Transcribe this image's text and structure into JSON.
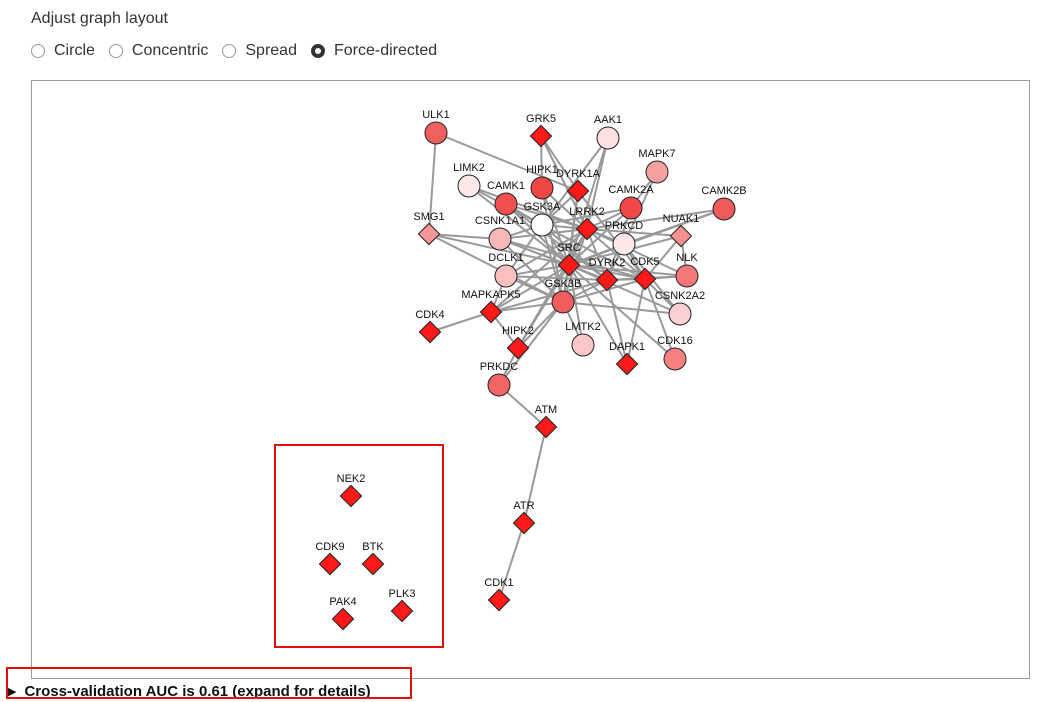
{
  "heading": "Adjust graph layout",
  "layout_options": [
    {
      "label": "Circle",
      "checked": false
    },
    {
      "label": "Concentric",
      "checked": false
    },
    {
      "label": "Spread",
      "checked": false
    },
    {
      "label": "Force-directed",
      "checked": true
    }
  ],
  "colors": {
    "edge": "#999999",
    "highlight": "#e01010",
    "diamond": "#ff0000"
  },
  "graph": {
    "nodes": [
      {
        "id": "ULK1",
        "shape": "circle",
        "fill": "#f25f5f"
      },
      {
        "id": "GRK5",
        "shape": "diamond",
        "fill": "#ff1a1a"
      },
      {
        "id": "AAK1",
        "shape": "circle",
        "fill": "#fde0e0"
      },
      {
        "id": "MAPK7",
        "shape": "circle",
        "fill": "#f7a0a0"
      },
      {
        "id": "LIMK2",
        "shape": "circle",
        "fill": "#fde8e8"
      },
      {
        "id": "HIPK1",
        "shape": "circle",
        "fill": "#f24545"
      },
      {
        "id": "DYRK1A",
        "shape": "diamond",
        "fill": "#ff1a1a"
      },
      {
        "id": "CAMK1",
        "shape": "circle",
        "fill": "#f25050"
      },
      {
        "id": "CAMK2A",
        "shape": "circle",
        "fill": "#f04848"
      },
      {
        "id": "CAMK2B",
        "shape": "circle",
        "fill": "#f05a5a"
      },
      {
        "id": "GSK3A",
        "shape": "circle",
        "fill": "#ffffff"
      },
      {
        "id": "SMG1",
        "shape": "diamond",
        "fill": "#f59595"
      },
      {
        "id": "CSNK1A1",
        "shape": "circle",
        "fill": "#f9b8b8"
      },
      {
        "id": "LRRK2",
        "shape": "diamond",
        "fill": "#ff1a1a"
      },
      {
        "id": "PRKCD",
        "shape": "circle",
        "fill": "#fde8e8"
      },
      {
        "id": "NUAK1",
        "shape": "diamond",
        "fill": "#f59090"
      },
      {
        "id": "SRC",
        "shape": "diamond",
        "fill": "#ff1a1a"
      },
      {
        "id": "DCLK1",
        "shape": "circle",
        "fill": "#fac0c0"
      },
      {
        "id": "DYRK2",
        "shape": "diamond",
        "fill": "#ff1a1a"
      },
      {
        "id": "CDK5",
        "shape": "diamond",
        "fill": "#ff1a1a"
      },
      {
        "id": "NLK",
        "shape": "circle",
        "fill": "#f57878"
      },
      {
        "id": "MAPKAPK5",
        "shape": "diamond",
        "fill": "#ff1a1a"
      },
      {
        "id": "GSK3B",
        "shape": "circle",
        "fill": "#f25c5c"
      },
      {
        "id": "CSNK2A2",
        "shape": "circle",
        "fill": "#fbd0d0"
      },
      {
        "id": "CDK4",
        "shape": "diamond",
        "fill": "#ff1a1a"
      },
      {
        "id": "HIPK2",
        "shape": "diamond",
        "fill": "#ff1a1a"
      },
      {
        "id": "LMTK2",
        "shape": "circle",
        "fill": "#fbc8c8"
      },
      {
        "id": "DAPK1",
        "shape": "diamond",
        "fill": "#ff1a1a"
      },
      {
        "id": "CDK16",
        "shape": "circle",
        "fill": "#f78080"
      },
      {
        "id": "PRKDC",
        "shape": "circle",
        "fill": "#f26565"
      },
      {
        "id": "ATM",
        "shape": "diamond",
        "fill": "#ff1a1a"
      },
      {
        "id": "NEK2",
        "shape": "diamond",
        "fill": "#ff1a1a"
      },
      {
        "id": "CDK9",
        "shape": "diamond",
        "fill": "#ff1a1a"
      },
      {
        "id": "BTK",
        "shape": "diamond",
        "fill": "#ff1a1a"
      },
      {
        "id": "PAK4",
        "shape": "diamond",
        "fill": "#ff1a1a"
      },
      {
        "id": "PLK3",
        "shape": "diamond",
        "fill": "#ff1a1a"
      },
      {
        "id": "ATR",
        "shape": "diamond",
        "fill": "#ff1a1a"
      },
      {
        "id": "CDK1",
        "shape": "diamond",
        "fill": "#ff1a1a"
      }
    ],
    "edges": [
      [
        "ULK1",
        "SMG1"
      ],
      [
        "ULK1",
        "DYRK1A"
      ],
      [
        "GRK5",
        "HIPK1"
      ],
      [
        "GRK5",
        "DYRK1A"
      ],
      [
        "GRK5",
        "LRRK2"
      ],
      [
        "AAK1",
        "GSK3A"
      ],
      [
        "AAK1",
        "LRRK2"
      ],
      [
        "AAK1",
        "SRC"
      ],
      [
        "MAPK7",
        "CAMK2A"
      ],
      [
        "MAPK7",
        "PRKCD"
      ],
      [
        "LIMK2",
        "LRRK2"
      ],
      [
        "LIMK2",
        "SRC"
      ],
      [
        "LIMK2",
        "GSK3A"
      ],
      [
        "HIPK1",
        "LRRK2"
      ],
      [
        "HIPK1",
        "SRC"
      ],
      [
        "HIPK1",
        "GSK3B"
      ],
      [
        "CAMK1",
        "GSK3A"
      ],
      [
        "CAMK1",
        "LRRK2"
      ],
      [
        "CAMK1",
        "SRC"
      ],
      [
        "CAMK1",
        "DYRK2"
      ],
      [
        "DYRK1A",
        "GSK3A"
      ],
      [
        "DYRK1A",
        "SRC"
      ],
      [
        "DYRK1A",
        "GSK3B"
      ],
      [
        "DYRK1A",
        "CDK5"
      ],
      [
        "CAMK2A",
        "LRRK2"
      ],
      [
        "CAMK2A",
        "SRC"
      ],
      [
        "CAMK2A",
        "DYRK2"
      ],
      [
        "CAMK2A",
        "GSK3A"
      ],
      [
        "CAMK2B",
        "LRRK2"
      ],
      [
        "CAMK2B",
        "PRKCD"
      ],
      [
        "CAMK2B",
        "SRC"
      ],
      [
        "GSK3A",
        "SRC"
      ],
      [
        "GSK3A",
        "GSK3B"
      ],
      [
        "GSK3A",
        "DYRK2"
      ],
      [
        "GSK3A",
        "CDK5"
      ],
      [
        "GSK3A",
        "LRRK2"
      ],
      [
        "GSK3A",
        "DCLK1"
      ],
      [
        "GSK3A",
        "CSNK1A1"
      ],
      [
        "SMG1",
        "SRC"
      ],
      [
        "SMG1",
        "CSNK1A1"
      ],
      [
        "SMG1",
        "GSK3B"
      ],
      [
        "CSNK1A1",
        "SRC"
      ],
      [
        "CSNK1A1",
        "LRRK2"
      ],
      [
        "CSNK1A1",
        "DYRK2"
      ],
      [
        "CSNK1A1",
        "CDK5"
      ],
      [
        "CSNK1A1",
        "GSK3B"
      ],
      [
        "LRRK2",
        "SRC"
      ],
      [
        "LRRK2",
        "PRKCD"
      ],
      [
        "LRRK2",
        "NUAK1"
      ],
      [
        "LRRK2",
        "NLK"
      ],
      [
        "LRRK2",
        "CDK5"
      ],
      [
        "LRRK2",
        "DYRK2"
      ],
      [
        "LRRK2",
        "GSK3B"
      ],
      [
        "LRRK2",
        "DCLK1"
      ],
      [
        "LRRK2",
        "MAPKAPK5"
      ],
      [
        "LRRK2",
        "HIPK2"
      ],
      [
        "PRKCD",
        "SRC"
      ],
      [
        "PRKCD",
        "DYRK2"
      ],
      [
        "PRKCD",
        "CDK5"
      ],
      [
        "PRKCD",
        "CSNK2A2"
      ],
      [
        "NUAK1",
        "SRC"
      ],
      [
        "NUAK1",
        "CDK5"
      ],
      [
        "NUAK1",
        "NLK"
      ],
      [
        "SRC",
        "DCLK1"
      ],
      [
        "SRC",
        "DYRK2"
      ],
      [
        "SRC",
        "CDK5"
      ],
      [
        "SRC",
        "NLK"
      ],
      [
        "SRC",
        "GSK3B"
      ],
      [
        "SRC",
        "MAPKAPK5"
      ],
      [
        "SRC",
        "HIPK2"
      ],
      [
        "SRC",
        "LMTK2"
      ],
      [
        "SRC",
        "DAPK1"
      ],
      [
        "SRC",
        "CDK16"
      ],
      [
        "SRC",
        "CSNK2A2"
      ],
      [
        "DCLK1",
        "DYRK2"
      ],
      [
        "DCLK1",
        "GSK3B"
      ],
      [
        "DCLK1",
        "MAPKAPK5"
      ],
      [
        "DYRK2",
        "CDK5"
      ],
      [
        "DYRK2",
        "NLK"
      ],
      [
        "DYRK2",
        "GSK3B"
      ],
      [
        "DYRK2",
        "DAPK1"
      ],
      [
        "DYRK2",
        "MAPKAPK5"
      ],
      [
        "CDK5",
        "NLK"
      ],
      [
        "CDK5",
        "CSNK2A2"
      ],
      [
        "CDK5",
        "CDK16"
      ],
      [
        "CDK5",
        "GSK3B"
      ],
      [
        "CDK5",
        "DAPK1"
      ],
      [
        "MAPKAPK5",
        "CDK4"
      ],
      [
        "MAPKAPK5",
        "GSK3B"
      ],
      [
        "MAPKAPK5",
        "HIPK2"
      ],
      [
        "GSK3B",
        "HIPK2"
      ],
      [
        "GSK3B",
        "LMTK2"
      ],
      [
        "GSK3B",
        "PRKDC"
      ],
      [
        "GSK3B",
        "CSNK2A2"
      ],
      [
        "HIPK2",
        "PRKDC"
      ],
      [
        "PRKDC",
        "ATM"
      ],
      [
        "ATM",
        "ATR"
      ],
      [
        "ATR",
        "CDK1"
      ]
    ]
  },
  "summary_text": "Cross-validation AUC is 0.61 (expand for details)"
}
